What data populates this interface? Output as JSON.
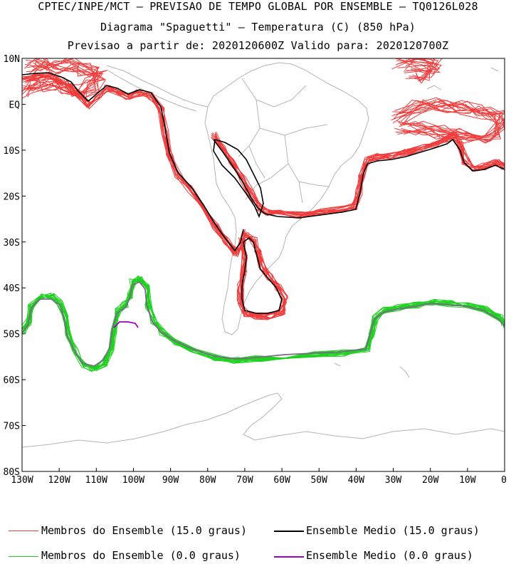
{
  "header": {
    "line1": "CPTEC/INPE/MCT – PREVISAO DE TEMPO GLOBAL POR ENSEMBLE – TQ0126L028",
    "line2": "Diagrama \"Spaguetti\" – Temperatura (C) (850 hPa)",
    "line3": "Previsao a partir de: 2020120600Z  Valido para: 2020120700Z"
  },
  "map": {
    "lat_ticks": [
      "10N",
      "EQ",
      "10S",
      "20S",
      "30S",
      "40S",
      "50S",
      "60S",
      "70S",
      "80S"
    ],
    "lon_ticks": [
      "130W",
      "120W",
      "110W",
      "100W",
      "90W",
      "80W",
      "70W",
      "60W",
      "50W",
      "40W",
      "30W",
      "20W",
      "10W",
      "0"
    ],
    "lon_range": [
      -130,
      0
    ],
    "lat_range": [
      -80,
      10
    ],
    "colors": {
      "coast": "#b4b4b4",
      "member_15": "#f03c3c",
      "mean_15": "#000000",
      "member_0": "#1ed21e",
      "mean_0": "#a000c8"
    }
  },
  "legend": {
    "members_15": "Membros do Ensemble (15.0 graus)",
    "mean_15": "Ensemble Medio (15.0 graus)",
    "members_0": "Membros do Ensemble (0.0 graus)",
    "mean_0": "Ensemble Medio (0.0 graus)"
  }
}
